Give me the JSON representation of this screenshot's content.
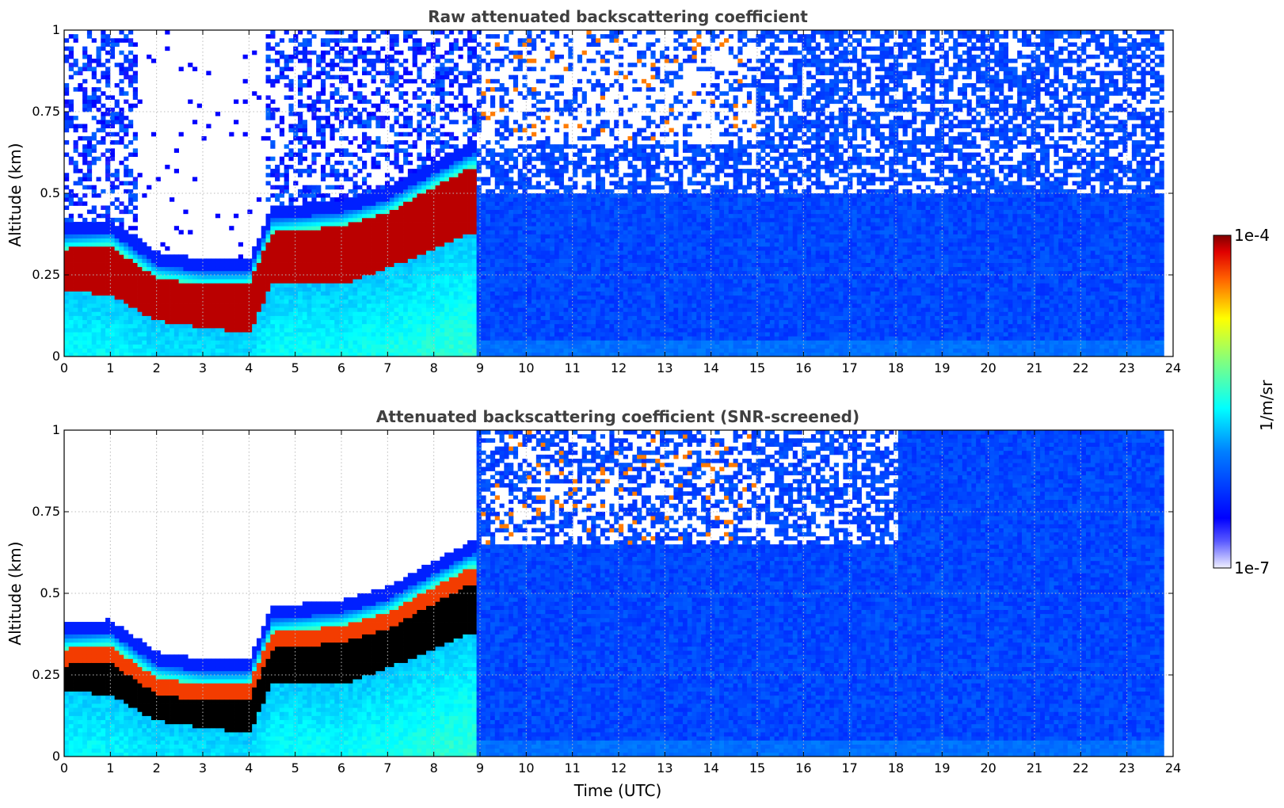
{
  "chart_data": [
    {
      "type": "heatmap",
      "title": "Raw attenuated backscattering coefficient",
      "xlabel": "",
      "ylabel": "Altitude (km)",
      "xlim": [
        0,
        24
      ],
      "ylim": [
        0,
        1
      ],
      "xticks": [
        "0",
        "1",
        "2",
        "3",
        "4",
        "5",
        "6",
        "7",
        "8",
        "9",
        "10",
        "11",
        "12",
        "13",
        "14",
        "15",
        "16",
        "17",
        "18",
        "19",
        "20",
        "21",
        "22",
        "23",
        "24"
      ],
      "yticks": [
        "0",
        "0.25",
        "0.5",
        "0.75",
        "1"
      ],
      "grid": true,
      "data_end_time": 23.8,
      "colorscale": "jet",
      "layer_top_km": [
        {
          "t": 0,
          "top": 0.33
        },
        {
          "t": 1,
          "top": 0.34
        },
        {
          "t": 2,
          "top": 0.24
        },
        {
          "t": 3,
          "top": 0.22
        },
        {
          "t": 4,
          "top": 0.22
        },
        {
          "t": 4.5,
          "top": 0.38
        },
        {
          "t": 6,
          "top": 0.4
        },
        {
          "t": 7,
          "top": 0.44
        },
        {
          "t": 8,
          "top": 0.52
        },
        {
          "t": 8.8,
          "top": 0.58
        }
      ],
      "layer_base_km": [
        {
          "t": 0,
          "base": 0.2
        },
        {
          "t": 1,
          "base": 0.19
        },
        {
          "t": 2,
          "base": 0.11
        },
        {
          "t": 3,
          "base": 0.09
        },
        {
          "t": 4,
          "base": 0.07
        },
        {
          "t": 4.5,
          "base": 0.22
        },
        {
          "t": 6,
          "base": 0.22
        },
        {
          "t": 7,
          "base": 0.27
        },
        {
          "t": 8,
          "base": 0.33
        },
        {
          "t": 8.8,
          "base": 0.38
        }
      ]
    },
    {
      "type": "heatmap",
      "title": "Attenuated backscattering coefficient (SNR-screened)",
      "xlabel": "Time (UTC)",
      "ylabel": "Altitude (km)",
      "xlim": [
        0,
        24
      ],
      "ylim": [
        0,
        1
      ],
      "xticks": [
        "0",
        "1",
        "2",
        "3",
        "4",
        "5",
        "6",
        "7",
        "8",
        "9",
        "10",
        "11",
        "12",
        "13",
        "14",
        "15",
        "16",
        "17",
        "18",
        "19",
        "20",
        "21",
        "22",
        "23",
        "24"
      ],
      "yticks": [
        "0",
        "0.25",
        "0.5",
        "0.75",
        "1"
      ],
      "grid": true,
      "data_end_time": 23.8,
      "colorscale": "jet",
      "screened_color": "#ffffff",
      "saturated_color": "#000000"
    }
  ],
  "colorbar": {
    "label": "1/m/sr",
    "max_label": "1e-4",
    "min_label": "1e-7",
    "scale": "log"
  }
}
